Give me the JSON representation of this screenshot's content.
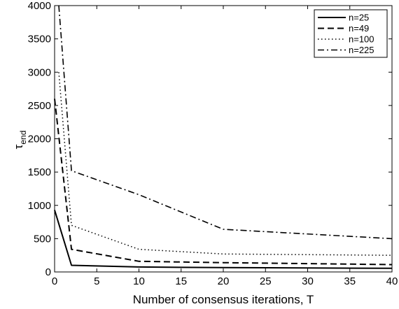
{
  "chart_data": {
    "type": "line",
    "title": "",
    "xlabel": "Number of consensus iterations, T",
    "ylabel_main": "τ",
    "ylabel_sub": "end",
    "xlim": [
      0,
      40
    ],
    "ylim": [
      0,
      4000
    ],
    "xticks": [
      0,
      5,
      10,
      15,
      20,
      25,
      30,
      35,
      40
    ],
    "yticks": [
      0,
      500,
      1000,
      1500,
      2000,
      2500,
      3000,
      3500,
      4000
    ],
    "grid": false,
    "legend_position": "top-right",
    "series": [
      {
        "name": "n=25",
        "style": "solid",
        "x": [
          0,
          2,
          10,
          20,
          40
        ],
        "y": [
          930,
          100,
          75,
          65,
          55
        ]
      },
      {
        "name": "n=49",
        "style": "dashed",
        "x": [
          0,
          2,
          10,
          20,
          40
        ],
        "y": [
          2600,
          340,
          160,
          140,
          110
        ]
      },
      {
        "name": "n=100",
        "style": "dotted",
        "x": [
          0.5,
          2,
          10,
          20,
          40
        ],
        "y": [
          3000,
          700,
          340,
          270,
          250
        ]
      },
      {
        "name": "n=225",
        "style": "dashdot",
        "x": [
          0.5,
          2,
          10,
          20,
          40
        ],
        "y": [
          4000,
          1520,
          1160,
          640,
          500
        ]
      }
    ]
  }
}
